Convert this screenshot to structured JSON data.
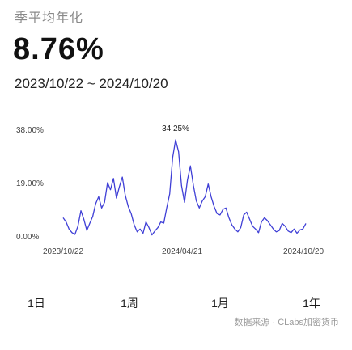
{
  "header": {
    "label": "季平均年化",
    "value": "8.76%",
    "date_range": "2023/10/22 ~ 2024/10/20"
  },
  "chart_data": {
    "type": "line",
    "title": "",
    "xlabel": "",
    "ylabel": "",
    "ylim": [
      0,
      38
    ],
    "y_ticks": [
      "38.00%",
      "19.00%",
      "0.00%"
    ],
    "y_tick_values": [
      38,
      19,
      0
    ],
    "x_ticks": [
      "2023/10/22",
      "2024/04/21",
      "2024/10/20"
    ],
    "peak_label": "34.25%",
    "line_color": "#3f3fd6",
    "grid": false,
    "series": [
      {
        "values": [
          6.5,
          5.0,
          2.5,
          1.2,
          0.6,
          3.5,
          9.0,
          6.0,
          2.0,
          4.5,
          7.0,
          11.5,
          14.0,
          10.0,
          12.0,
          19.0,
          16.5,
          20.5,
          13.5,
          17.5,
          21.0,
          14.5,
          10.5,
          8.0,
          4.0,
          1.5,
          2.5,
          1.0,
          5.0,
          3.0,
          0.4,
          1.8,
          3.0,
          5.0,
          4.6,
          10.0,
          15.0,
          28.0,
          34.25,
          30.0,
          18.0,
          12.0,
          20.0,
          25.0,
          18.0,
          12.5,
          10.0,
          12.5,
          14.0,
          18.5,
          14.0,
          10.5,
          8.0,
          7.5,
          9.5,
          10.0,
          6.5,
          4.0,
          2.5,
          1.5,
          3.0,
          7.5,
          8.5,
          6.0,
          3.5,
          2.5,
          1.2,
          5.0,
          6.5,
          5.5,
          4.0,
          2.5,
          1.5,
          2.0,
          4.5,
          3.5,
          1.8,
          1.2,
          2.5,
          1.0,
          2.2,
          2.5,
          4.5
        ]
      }
    ]
  },
  "periods": [
    {
      "label": "1日",
      "active": false
    },
    {
      "label": "1周",
      "active": false
    },
    {
      "label": "1月",
      "active": false
    },
    {
      "label": "1年",
      "active": true
    }
  ],
  "watermark": "数据来源 · CLabs加密货币"
}
